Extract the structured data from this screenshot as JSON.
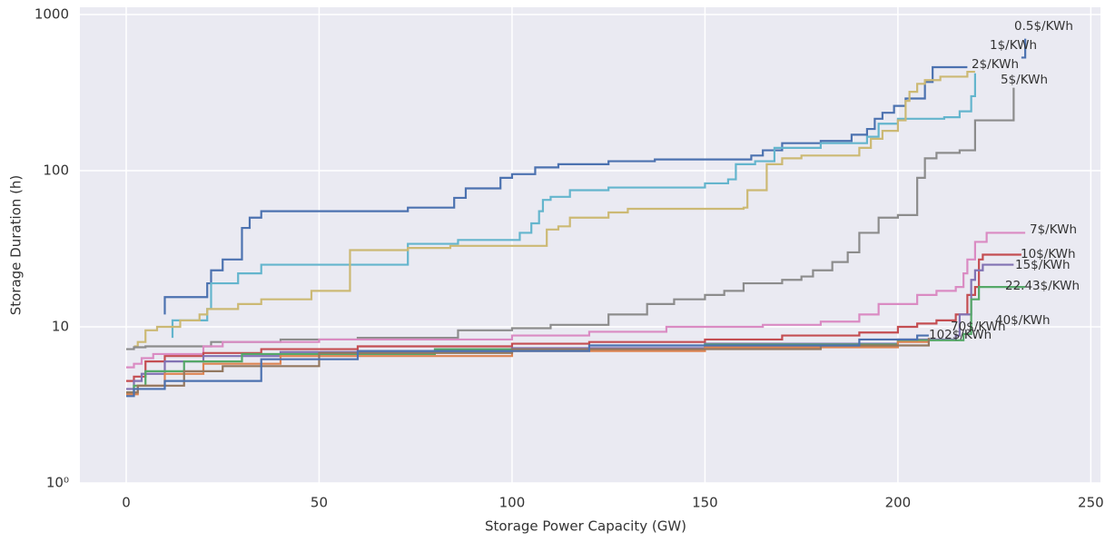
{
  "chart_data": {
    "type": "step",
    "xlabel": "Storage Power Capacity (GW)",
    "ylabel": "Storage Duration (h)",
    "yscale": "log",
    "grid": true,
    "xlim": [
      -12,
      252.5
    ],
    "ylim": [
      1,
      1000
    ],
    "xticks": [
      0,
      50,
      100,
      150,
      200,
      250
    ],
    "yticks": [
      {
        "value": 1,
        "label": "10⁰"
      },
      10,
      100,
      1000
    ],
    "series": [
      {
        "name": "0.5$/KWh",
        "color": "#4c72b0",
        "x": [
          10,
          10,
          21,
          22,
          25,
          30,
          32,
          35,
          73,
          85,
          88,
          97,
          100,
          106,
          112,
          125,
          137,
          162,
          165,
          170,
          180,
          188,
          192,
          194,
          196,
          199,
          202,
          207,
          209,
          218,
          null,
          232,
          233
        ],
        "y": [
          12,
          15.5,
          19,
          23,
          27,
          43,
          50,
          55,
          58,
          67,
          77,
          90,
          95,
          105,
          110,
          115,
          118,
          125,
          135,
          150,
          155,
          170,
          185,
          215,
          235,
          260,
          290,
          370,
          460,
          460,
          null,
          530,
          700
        ]
      },
      {
        "name": "1$/KWh",
        "color": "#64b5cd",
        "x": [
          12,
          12,
          19,
          21,
          22,
          29,
          35,
          73,
          86,
          101,
          102,
          105,
          107,
          108,
          110,
          115,
          125,
          138,
          150,
          156,
          158,
          163,
          168,
          180,
          192,
          195,
          200,
          212,
          216,
          219,
          220
        ],
        "y": [
          8.5,
          11,
          11,
          13,
          19,
          22,
          25,
          34,
          36,
          36,
          40,
          46,
          55,
          65,
          68,
          75,
          78,
          78,
          83,
          88,
          110,
          115,
          140,
          150,
          165,
          200,
          215,
          220,
          240,
          300,
          420
        ]
      },
      {
        "name": "2$/KWh",
        "color": "#ccb974",
        "x": [
          2,
          3,
          5,
          8,
          14,
          19,
          21,
          29,
          35,
          48,
          58,
          73,
          84,
          100,
          109,
          112,
          115,
          125,
          130,
          148,
          160,
          161,
          166,
          170,
          175,
          190,
          193,
          196,
          200,
          202,
          203,
          205,
          207,
          211,
          218,
          220
        ],
        "y": [
          7.5,
          8,
          9.5,
          10,
          11,
          12,
          13,
          14,
          15,
          17,
          31,
          32,
          33,
          33,
          42,
          44,
          50,
          54,
          57,
          57,
          58,
          75,
          110,
          120,
          125,
          140,
          160,
          180,
          210,
          280,
          320,
          360,
          380,
          400,
          430,
          430
        ]
      },
      {
        "name": "5$/KWh",
        "color": "#8c8c8c",
        "x": [
          0,
          2,
          5,
          22,
          40,
          60,
          86,
          100,
          110,
          125,
          135,
          142,
          150,
          155,
          160,
          170,
          175,
          178,
          183,
          187,
          190,
          195,
          200,
          205,
          207,
          210,
          216,
          220,
          224,
          230
        ],
        "y": [
          7.2,
          7.4,
          7.5,
          8,
          8.3,
          8.5,
          9.5,
          9.8,
          10.3,
          12,
          14,
          15,
          16,
          17,
          19,
          20,
          21,
          23,
          26,
          30,
          40,
          50,
          52,
          90,
          120,
          130,
          135,
          210,
          210,
          340
        ]
      },
      {
        "name": "7$/KWh",
        "color": "#da8bc3",
        "x": [
          0,
          2,
          4,
          7,
          20,
          25,
          50,
          100,
          120,
          140,
          165,
          180,
          190,
          195,
          205,
          210,
          215,
          217,
          218,
          220,
          223,
          233
        ],
        "y": [
          5.5,
          5.8,
          6.3,
          6.7,
          7.5,
          8,
          8.3,
          8.8,
          9.3,
          10,
          10.3,
          10.8,
          12,
          14,
          16,
          17,
          18,
          22,
          27,
          35,
          40,
          40
        ]
      },
      {
        "name": "10$/KWh",
        "color": "#c44e52",
        "x": [
          0,
          2,
          5,
          10,
          20,
          35,
          60,
          100,
          120,
          150,
          170,
          190,
          200,
          205,
          210,
          215,
          218,
          220,
          221,
          222,
          232
        ],
        "y": [
          4.5,
          4.8,
          6,
          6.5,
          6.8,
          7.2,
          7.5,
          7.8,
          8,
          8.3,
          8.8,
          9.2,
          10,
          10.5,
          11,
          12,
          16,
          18,
          27,
          29,
          29
        ]
      },
      {
        "name": "15$/KWh",
        "color": "#8172b3",
        "x": [
          0,
          2,
          4,
          10,
          20,
          40,
          100,
          150,
          200,
          215,
          216,
          219,
          220,
          222,
          230
        ],
        "y": [
          4,
          4.5,
          5,
          6,
          6.5,
          6.9,
          7.3,
          7.8,
          8.3,
          8.8,
          12,
          20,
          23,
          25,
          25
        ]
      },
      {
        "name": "22.43$/KWh",
        "color": "#55a868",
        "x": [
          0,
          2,
          5,
          15,
          30,
          80,
          150,
          200,
          217,
          219,
          221,
          233
        ],
        "y": [
          3.8,
          4.2,
          5.2,
          6,
          6.7,
          7.2,
          7.7,
          8.2,
          9,
          15,
          18,
          18
        ]
      },
      {
        "name": "40$/KWh",
        "color": "#dd8452",
        "x": [
          0,
          3,
          10,
          20,
          40,
          100,
          150,
          200,
          208
        ],
        "y": [
          3.7,
          4.2,
          5,
          5.8,
          6.5,
          7,
          7.4,
          8,
          8.2
        ]
      },
      {
        "name": "70$/KWh",
        "color": "#937860",
        "x": [
          0,
          3,
          15,
          25,
          50,
          100,
          180,
          208
        ],
        "y": [
          3.8,
          4.2,
          5.2,
          5.6,
          6.8,
          7.2,
          7.6,
          8.5
        ]
      },
      {
        "name": "102$/KWh",
        "color": "#4c72b0",
        "x": [
          0,
          2,
          10,
          35,
          60,
          120,
          190,
          205,
          208
        ],
        "y": [
          3.6,
          4,
          4.5,
          6.2,
          7,
          7.6,
          8.3,
          8.8,
          8.8
        ]
      }
    ]
  }
}
